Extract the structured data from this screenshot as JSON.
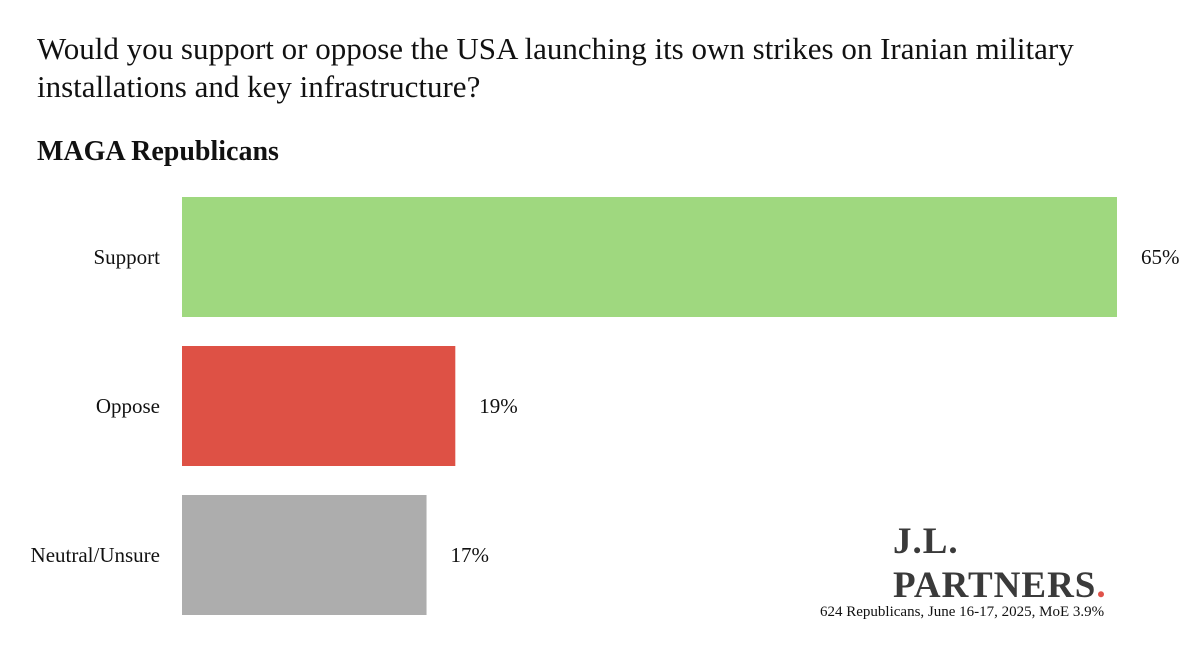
{
  "title": "Would you support or oppose the USA launching its own strikes on Iranian military installations and key infrastructure?",
  "subtitle": "MAGA Republicans",
  "chart_data": {
    "type": "bar",
    "orientation": "horizontal",
    "title": "Would you support or oppose the USA launching its own strikes on Iranian military installations and key infrastructure?",
    "subtitle": "MAGA Republicans",
    "categories": [
      "Support",
      "Oppose",
      "Neutral/Unsure"
    ],
    "values": [
      65,
      19,
      17
    ],
    "value_labels": [
      "65%",
      "19%",
      "17%"
    ],
    "colors": [
      "#9fd87f",
      "#de5145",
      "#adadad"
    ],
    "xlim": [
      0,
      65
    ],
    "unit": "%",
    "grid": false
  },
  "logo": {
    "line1": "J.L.",
    "line2": "PARTNERS",
    "dot": ".",
    "dot_color": "#e0534a"
  },
  "footnote": "624 Republicans, June 16-17, 2025, MoE 3.9%"
}
